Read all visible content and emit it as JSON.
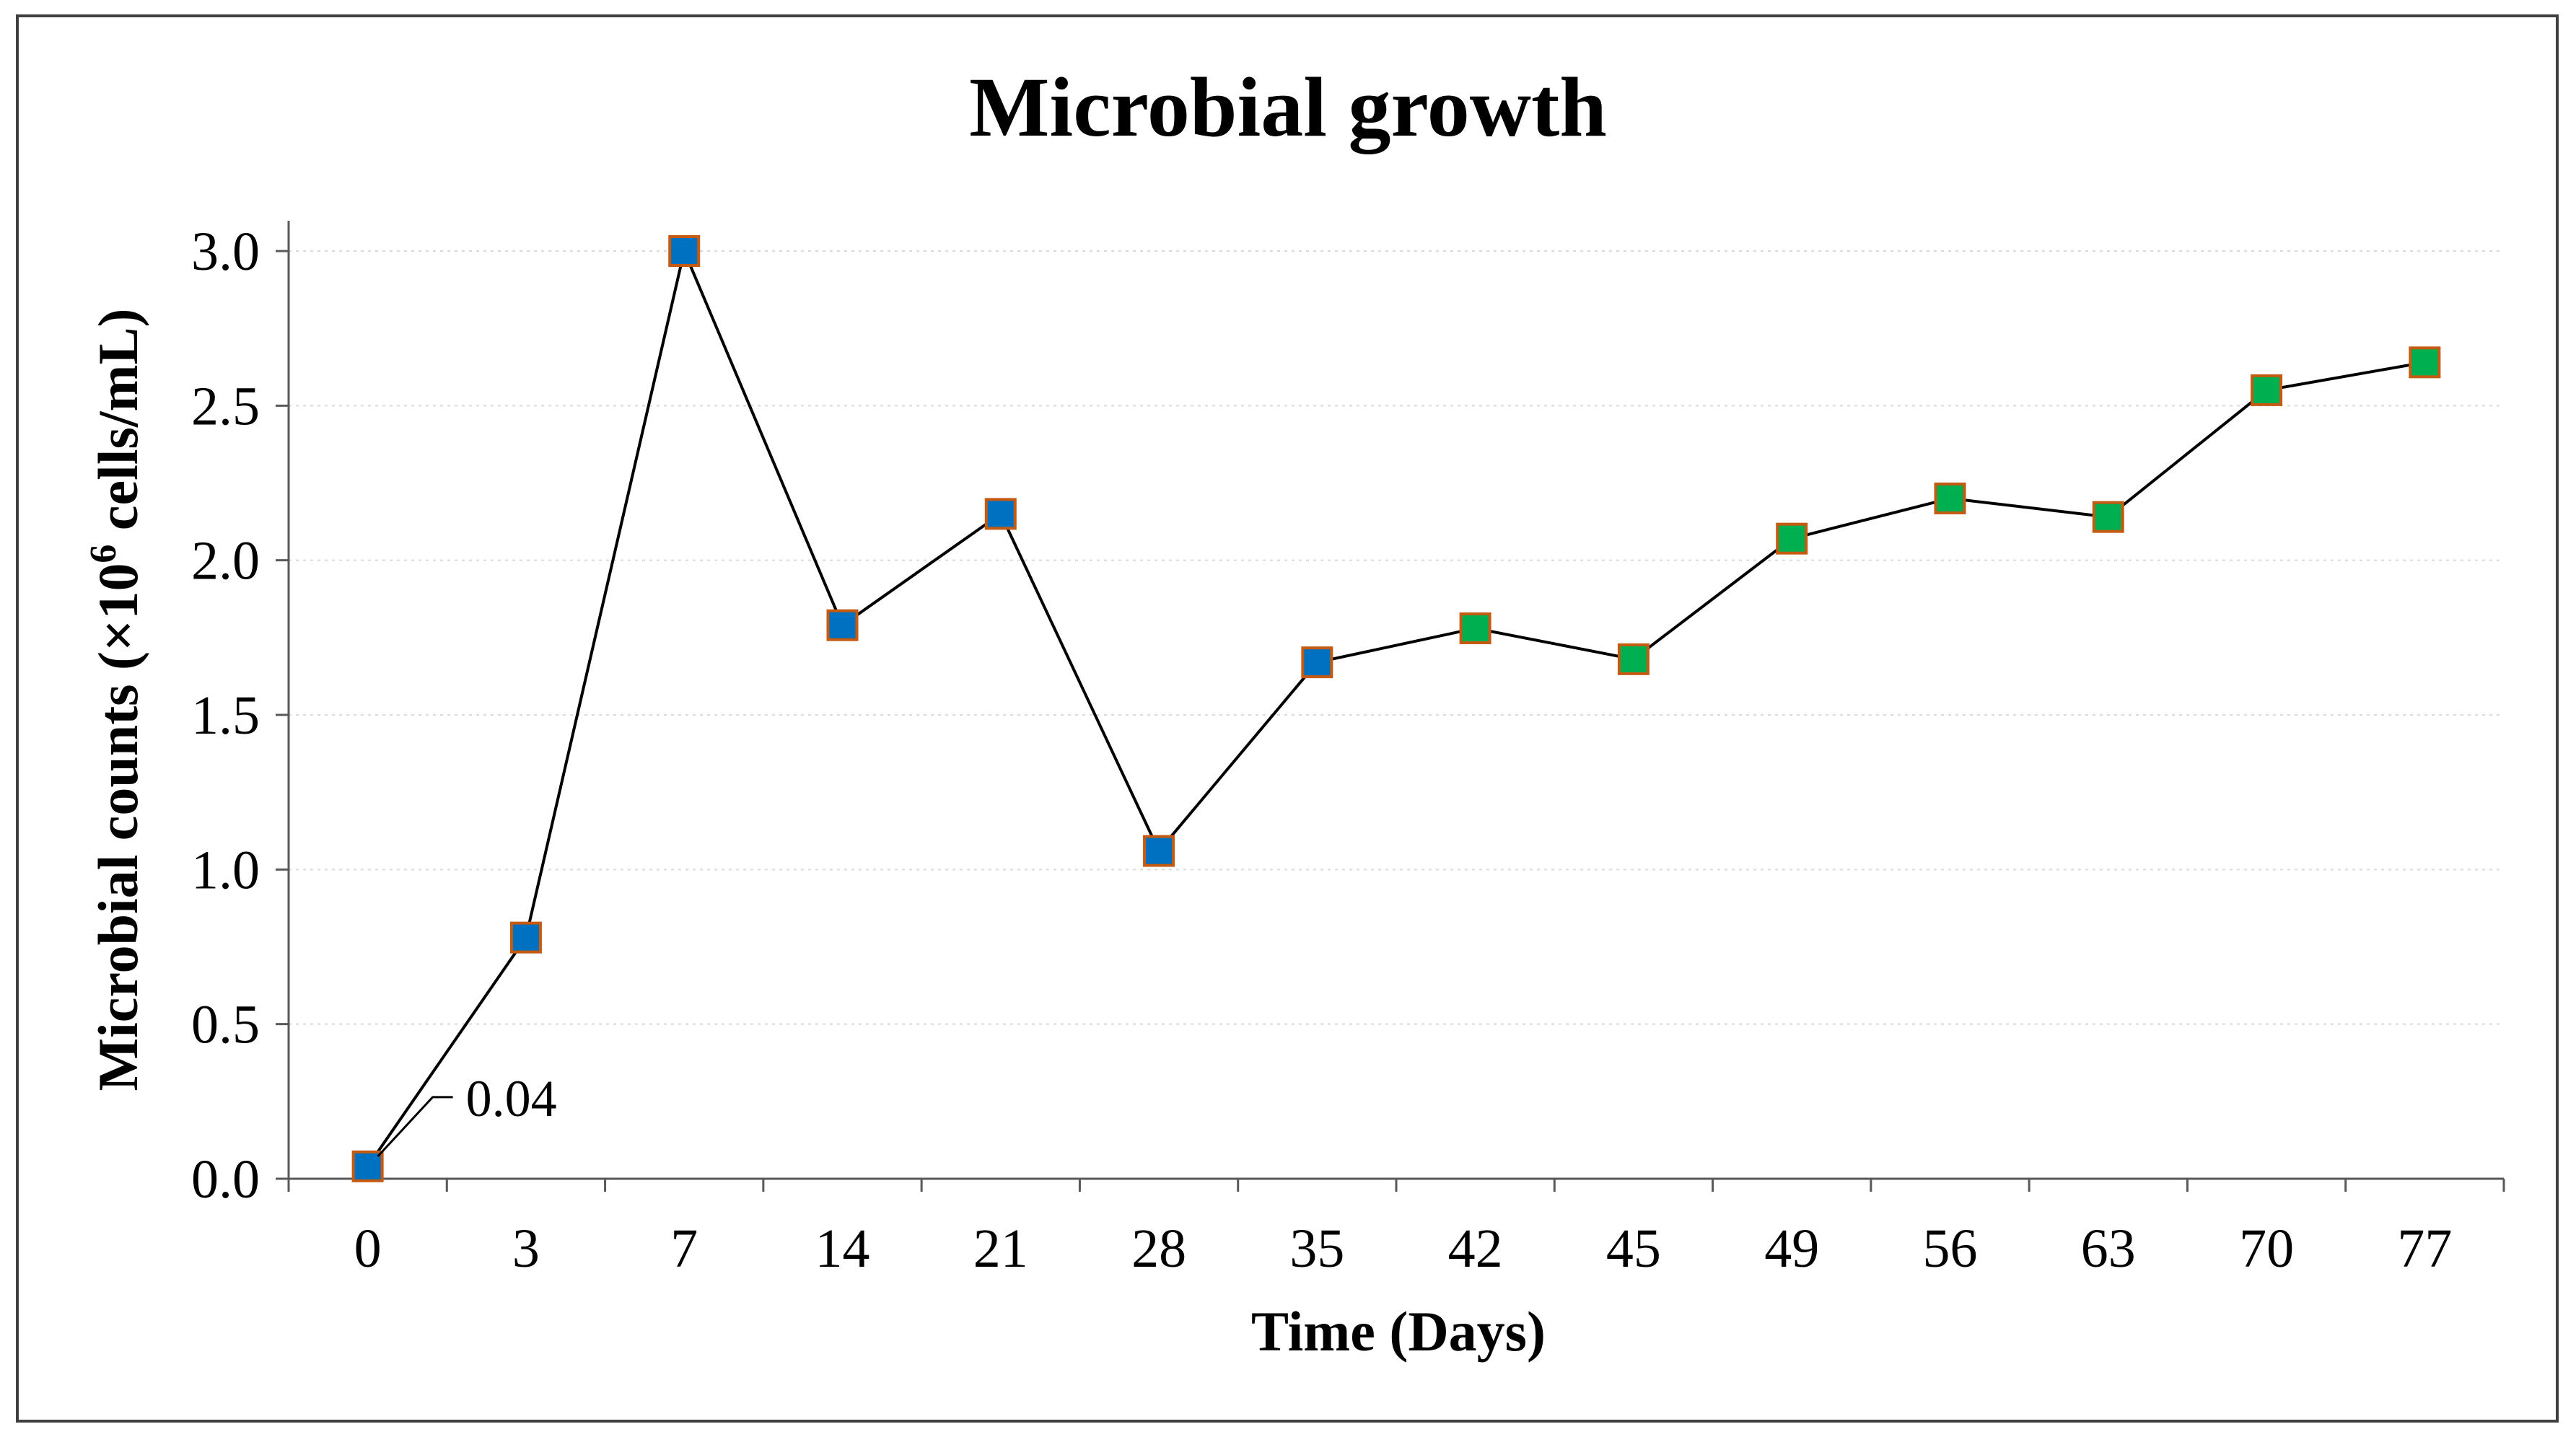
{
  "chart_data": {
    "type": "line",
    "title": "Microbial growth",
    "xlabel": "Time (Days)",
    "ylabel": {
      "before": "Microbial counts (×10",
      "sup": "6",
      "after": " cells/mL)"
    },
    "categories": [
      "0",
      "3",
      "7",
      "14",
      "21",
      "28",
      "35",
      "42",
      "45",
      "49",
      "56",
      "63",
      "70",
      "77"
    ],
    "series": [
      {
        "values": [
          0.04,
          0.78,
          3.0,
          1.79,
          2.15,
          1.06,
          1.67,
          1.78,
          1.68,
          2.07,
          2.2,
          2.14,
          2.55,
          2.64
        ],
        "point_colors": [
          "#0070c0",
          "#0070c0",
          "#0070c0",
          "#0070c0",
          "#0070c0",
          "#0070c0",
          "#0070c0",
          "#00b050",
          "#00b050",
          "#00b050",
          "#00b050",
          "#00b050",
          "#00b050",
          "#00b050"
        ],
        "line_color": "#000000",
        "marker_border": "#c55a11"
      }
    ],
    "ylim": [
      0,
      3.0
    ],
    "yticks": [
      "0.0",
      "0.5",
      "1.0",
      "1.5",
      "2.0",
      "2.5",
      "3.0"
    ],
    "grid": true,
    "annotations": [
      {
        "category": "0",
        "text": "0.04"
      }
    ]
  }
}
